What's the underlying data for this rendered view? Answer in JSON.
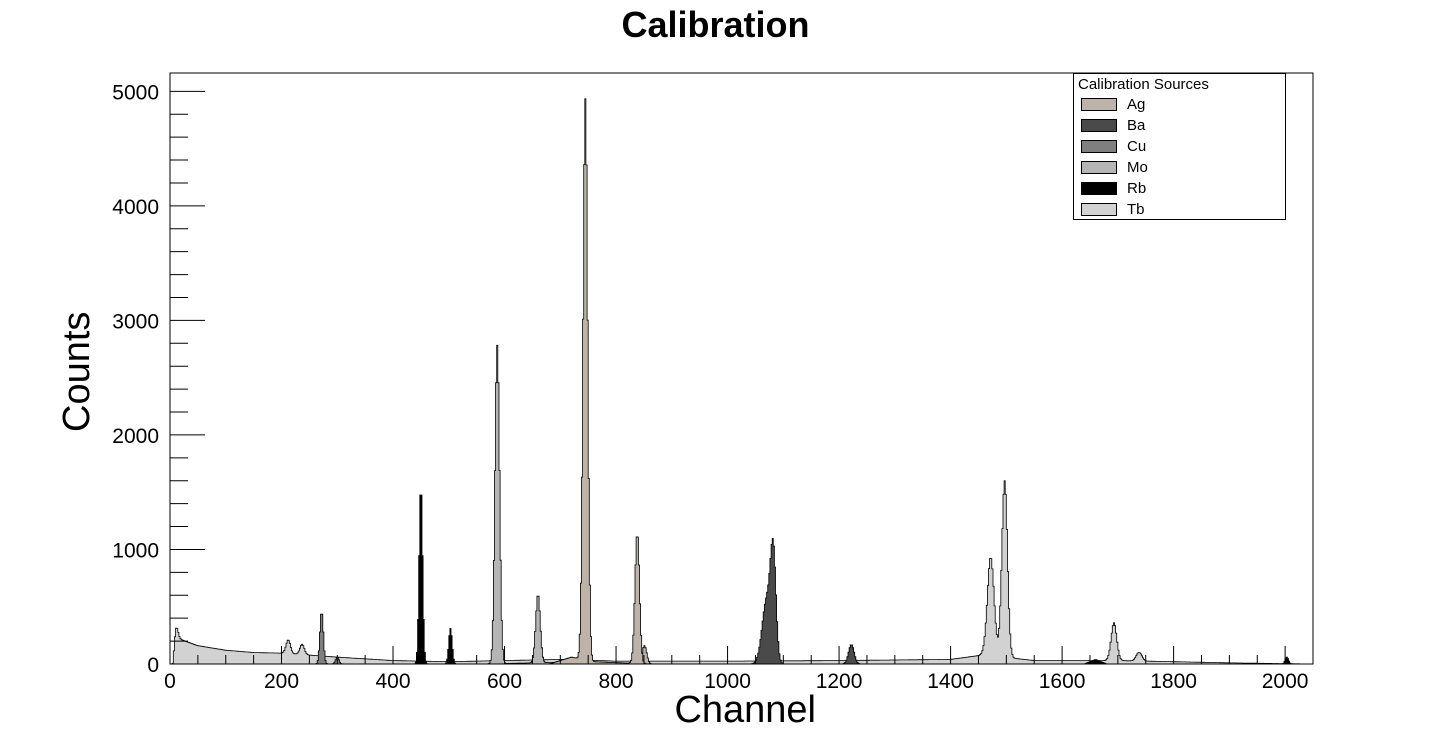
{
  "chart_data": {
    "type": "area",
    "title": "Calibration",
    "xlabel": "Channel",
    "ylabel": "Counts",
    "xlim": [
      0,
      2050
    ],
    "ylim": [
      0,
      5160
    ],
    "x_ticks": [
      0,
      200,
      400,
      600,
      800,
      1000,
      1200,
      1400,
      1600,
      1800,
      2000
    ],
    "y_ticks": [
      0,
      1000,
      2000,
      3000,
      4000,
      5000
    ],
    "grid": false,
    "legend": {
      "title": "Calibration Sources",
      "placement": "top-right",
      "entries": [
        {
          "name": "Ag",
          "color": "#bdb3a9"
        },
        {
          "name": "Ba",
          "color": "#4a4a4a"
        },
        {
          "name": "Cu",
          "color": "#7f7f7f"
        },
        {
          "name": "Mo",
          "color": "#b5b5b5"
        },
        {
          "name": "Rb",
          "color": "#000000"
        },
        {
          "name": "Tb",
          "color": "#d2d2d2"
        }
      ]
    },
    "series": [
      {
        "name": "Tb",
        "color": "#d2d2d2",
        "baseline": [
          [
            5,
            0
          ],
          [
            10,
            230
          ],
          [
            50,
            160
          ],
          [
            100,
            120
          ],
          [
            150,
            100
          ],
          [
            200,
            95
          ],
          [
            300,
            60
          ],
          [
            400,
            30
          ],
          [
            500,
            20
          ],
          [
            700,
            40
          ],
          [
            800,
            25
          ],
          [
            1000,
            25
          ],
          [
            1200,
            30
          ],
          [
            1400,
            40
          ],
          [
            1460,
            80
          ],
          [
            1550,
            30
          ],
          [
            1700,
            30
          ],
          [
            1800,
            20
          ],
          [
            1900,
            10
          ],
          [
            2045,
            0
          ]
        ],
        "peaks": [
          [
            12,
            90,
            3
          ],
          [
            212,
            120,
            4
          ],
          [
            237,
            90,
            4
          ],
          [
            1472,
            860,
            6
          ],
          [
            1497,
            1540,
            5
          ],
          [
            1693,
            330,
            5
          ],
          [
            1738,
            75,
            5
          ]
        ]
      },
      {
        "name": "Mo",
        "color": "#b5b5b5",
        "baseline": [
          [
            560,
            0
          ],
          [
            700,
            15
          ],
          [
            860,
            0
          ]
        ],
        "peaks": [
          [
            587,
            2780,
            4
          ],
          [
            660,
            600,
            4
          ],
          [
            851,
            160,
            4
          ]
        ]
      },
      {
        "name": "Ag",
        "color": "#bdb3a9",
        "baseline": [
          [
            680,
            0
          ],
          [
            720,
            60
          ],
          [
            760,
            20
          ],
          [
            860,
            0
          ]
        ],
        "peaks": [
          [
            745,
            4900,
            4
          ],
          [
            838,
            1140,
            4
          ]
        ]
      },
      {
        "name": "Ba",
        "color": "#4a4a4a",
        "baseline": [
          [
            1040,
            0
          ],
          [
            1260,
            0
          ]
        ],
        "peaks": [
          [
            1070,
            550,
            8
          ],
          [
            1082,
            900,
            5
          ],
          [
            1222,
            170,
            5
          ]
        ]
      },
      {
        "name": "Cu",
        "color": "#7f7f7f",
        "baseline": [
          [
            250,
            0
          ],
          [
            320,
            0
          ]
        ],
        "peaks": [
          [
            272,
            460,
            3
          ],
          [
            300,
            60,
            3
          ]
        ]
      },
      {
        "name": "Rb",
        "color": "#000000",
        "baseline": [
          [
            430,
            0
          ],
          [
            520,
            0
          ],
          [
            1640,
            0
          ],
          [
            1660,
            40
          ],
          [
            1680,
            0
          ],
          [
            1990,
            0
          ],
          [
            2010,
            0
          ]
        ],
        "peaks": [
          [
            450,
            1560,
            3
          ],
          [
            503,
            310,
            3
          ],
          [
            2003,
            60,
            3
          ]
        ]
      }
    ]
  }
}
